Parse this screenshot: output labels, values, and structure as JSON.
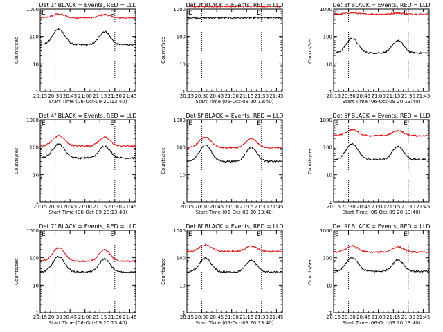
{
  "figure": {
    "xlabel": "Start Time (06-Oct-09 20:13:40)"
  },
  "chart_data": [
    {
      "type": "line",
      "title": "Det 1f BLACK = Events, RED = LLD",
      "events_base": 50,
      "events_peak": 185,
      "lld_base": 480,
      "lld_peak": 660,
      "vlines": [
        20.5,
        21.5
      ],
      "markers": [
        "E",
        "E"
      ]
    },
    {
      "type": "line",
      "title": "Det 2f BLACK = Events, RED = LLD",
      "events_base": 480,
      "events_peak": 480,
      "lld_base": 1250,
      "lld_peak": 1250,
      "vlines": [
        20.5,
        21.5
      ],
      "markers": [
        "E",
        "E"
      ]
    },
    {
      "type": "line",
      "title": "Det 3f BLACK = Events, RED = LLD",
      "events_base": 25,
      "events_peak": 85,
      "lld_base": 650,
      "lld_peak": 730,
      "vlines": [
        20.5,
        21.5
      ],
      "markers": [
        "E",
        "E"
      ]
    },
    {
      "type": "line",
      "title": "Det 4f BLACK = Events, RED = LLD",
      "events_base": 40,
      "events_peak": 130,
      "lld_base": 110,
      "lld_peak": 260,
      "vlines": [
        20.5,
        21.5
      ],
      "markers": [
        "E",
        "E"
      ]
    },
    {
      "type": "line",
      "title": "Det 5f BLACK = Events, RED = LLD",
      "events_base": 30,
      "events_peak": 120,
      "lld_base": 95,
      "lld_peak": 230,
      "vlines": [
        20.5,
        21.5
      ],
      "markers": [
        "E",
        "E"
      ]
    },
    {
      "type": "line",
      "title": "Det 6f BLACK = Events, RED = LLD",
      "events_base": 35,
      "events_peak": 130,
      "lld_base": 260,
      "lld_peak": 430,
      "vlines": [
        20.5,
        21.5
      ],
      "markers": [
        "E",
        "E"
      ]
    },
    {
      "type": "line",
      "title": "Det 7f BLACK = Events, RED = LLD",
      "events_base": 30,
      "events_peak": 110,
      "lld_base": 75,
      "lld_peak": 230,
      "vlines": [
        20.5,
        21.5
      ],
      "markers": [
        "E",
        "E"
      ]
    },
    {
      "type": "line",
      "title": "Det 8f BLACK = Events, RED = LLD",
      "events_base": 30,
      "events_peak": 95,
      "lld_base": 170,
      "lld_peak": 290,
      "vlines": [
        20.5,
        21.5
      ],
      "markers": [
        "E",
        "E"
      ]
    },
    {
      "type": "line",
      "title": "Det 9f BLACK = Events, RED = LLD",
      "events_base": 32,
      "events_peak": 100,
      "lld_base": 160,
      "lld_peak": 270,
      "vlines": [
        20.5,
        21.5
      ],
      "markers": [
        "E",
        "E"
      ]
    }
  ],
  "axes": {
    "xlim": [
      20.25,
      21.85
    ],
    "ylim": [
      1,
      1000
    ],
    "yscale": "log",
    "ylabel": "Counts/sec",
    "x_ticks": [
      20.25,
      20.5,
      20.75,
      21.0,
      21.25,
      21.5,
      21.75
    ],
    "x_tick_labels": [
      "20:15",
      "20:30",
      "20:45",
      "21:00",
      "21:15",
      "21:30",
      "21:45"
    ],
    "y_ticks": [
      1,
      10,
      100,
      1000
    ],
    "y_tick_labels": [
      "1",
      "10",
      "100",
      "1000"
    ]
  },
  "colors": {
    "events": "#000000",
    "lld": "#e00000"
  }
}
